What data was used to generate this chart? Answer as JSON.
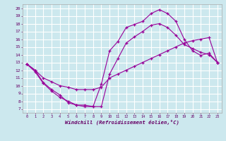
{
  "line1_x": [
    0,
    1,
    2,
    3,
    4,
    5,
    6,
    7,
    8,
    9,
    10,
    11,
    12,
    13,
    14,
    15,
    16,
    17,
    18,
    19,
    20,
    21,
    22,
    23
  ],
  "line1_y": [
    12.8,
    12.0,
    10.4,
    9.5,
    8.8,
    7.8,
    7.5,
    7.3,
    7.3,
    10.2,
    14.5,
    15.7,
    17.5,
    17.9,
    18.3,
    19.3,
    19.8,
    19.3,
    18.3,
    16.0,
    14.5,
    13.9,
    14.2,
    13.0
  ],
  "line2_x": [
    0,
    1,
    2,
    3,
    4,
    5,
    6,
    7,
    8,
    9,
    10,
    11,
    12,
    13,
    14,
    15,
    16,
    17,
    18,
    19,
    20,
    21,
    22,
    23
  ],
  "line2_y": [
    12.8,
    11.8,
    10.3,
    9.3,
    8.5,
    8.0,
    7.5,
    7.5,
    7.3,
    7.3,
    11.5,
    13.5,
    15.5,
    16.3,
    17.0,
    17.8,
    18.0,
    17.5,
    16.5,
    15.3,
    14.8,
    14.3,
    14.0,
    13.0
  ],
  "line3_x": [
    0,
    1,
    2,
    3,
    4,
    5,
    6,
    7,
    8,
    9,
    10,
    11,
    12,
    13,
    14,
    15,
    16,
    17,
    18,
    19,
    20,
    21,
    22,
    23
  ],
  "line3_y": [
    12.8,
    12.0,
    11.0,
    10.5,
    10.0,
    9.8,
    9.5,
    9.5,
    9.5,
    9.8,
    11.0,
    11.5,
    12.0,
    12.5,
    13.0,
    13.5,
    14.0,
    14.5,
    15.0,
    15.5,
    15.8,
    16.0,
    16.2,
    13.0
  ],
  "line_color": "#990099",
  "bg_color": "#cce8ee",
  "grid_color": "#b8dde4",
  "xlabel": "Windchill (Refroidissement éolien,°C)",
  "xlim": [
    -0.5,
    23.5
  ],
  "ylim": [
    6.5,
    20.5
  ],
  "xticks": [
    0,
    1,
    2,
    3,
    4,
    5,
    6,
    7,
    8,
    9,
    10,
    11,
    12,
    13,
    14,
    15,
    16,
    17,
    18,
    19,
    20,
    21,
    22,
    23
  ],
  "yticks": [
    7,
    8,
    9,
    10,
    11,
    12,
    13,
    14,
    15,
    16,
    17,
    18,
    19,
    20
  ]
}
